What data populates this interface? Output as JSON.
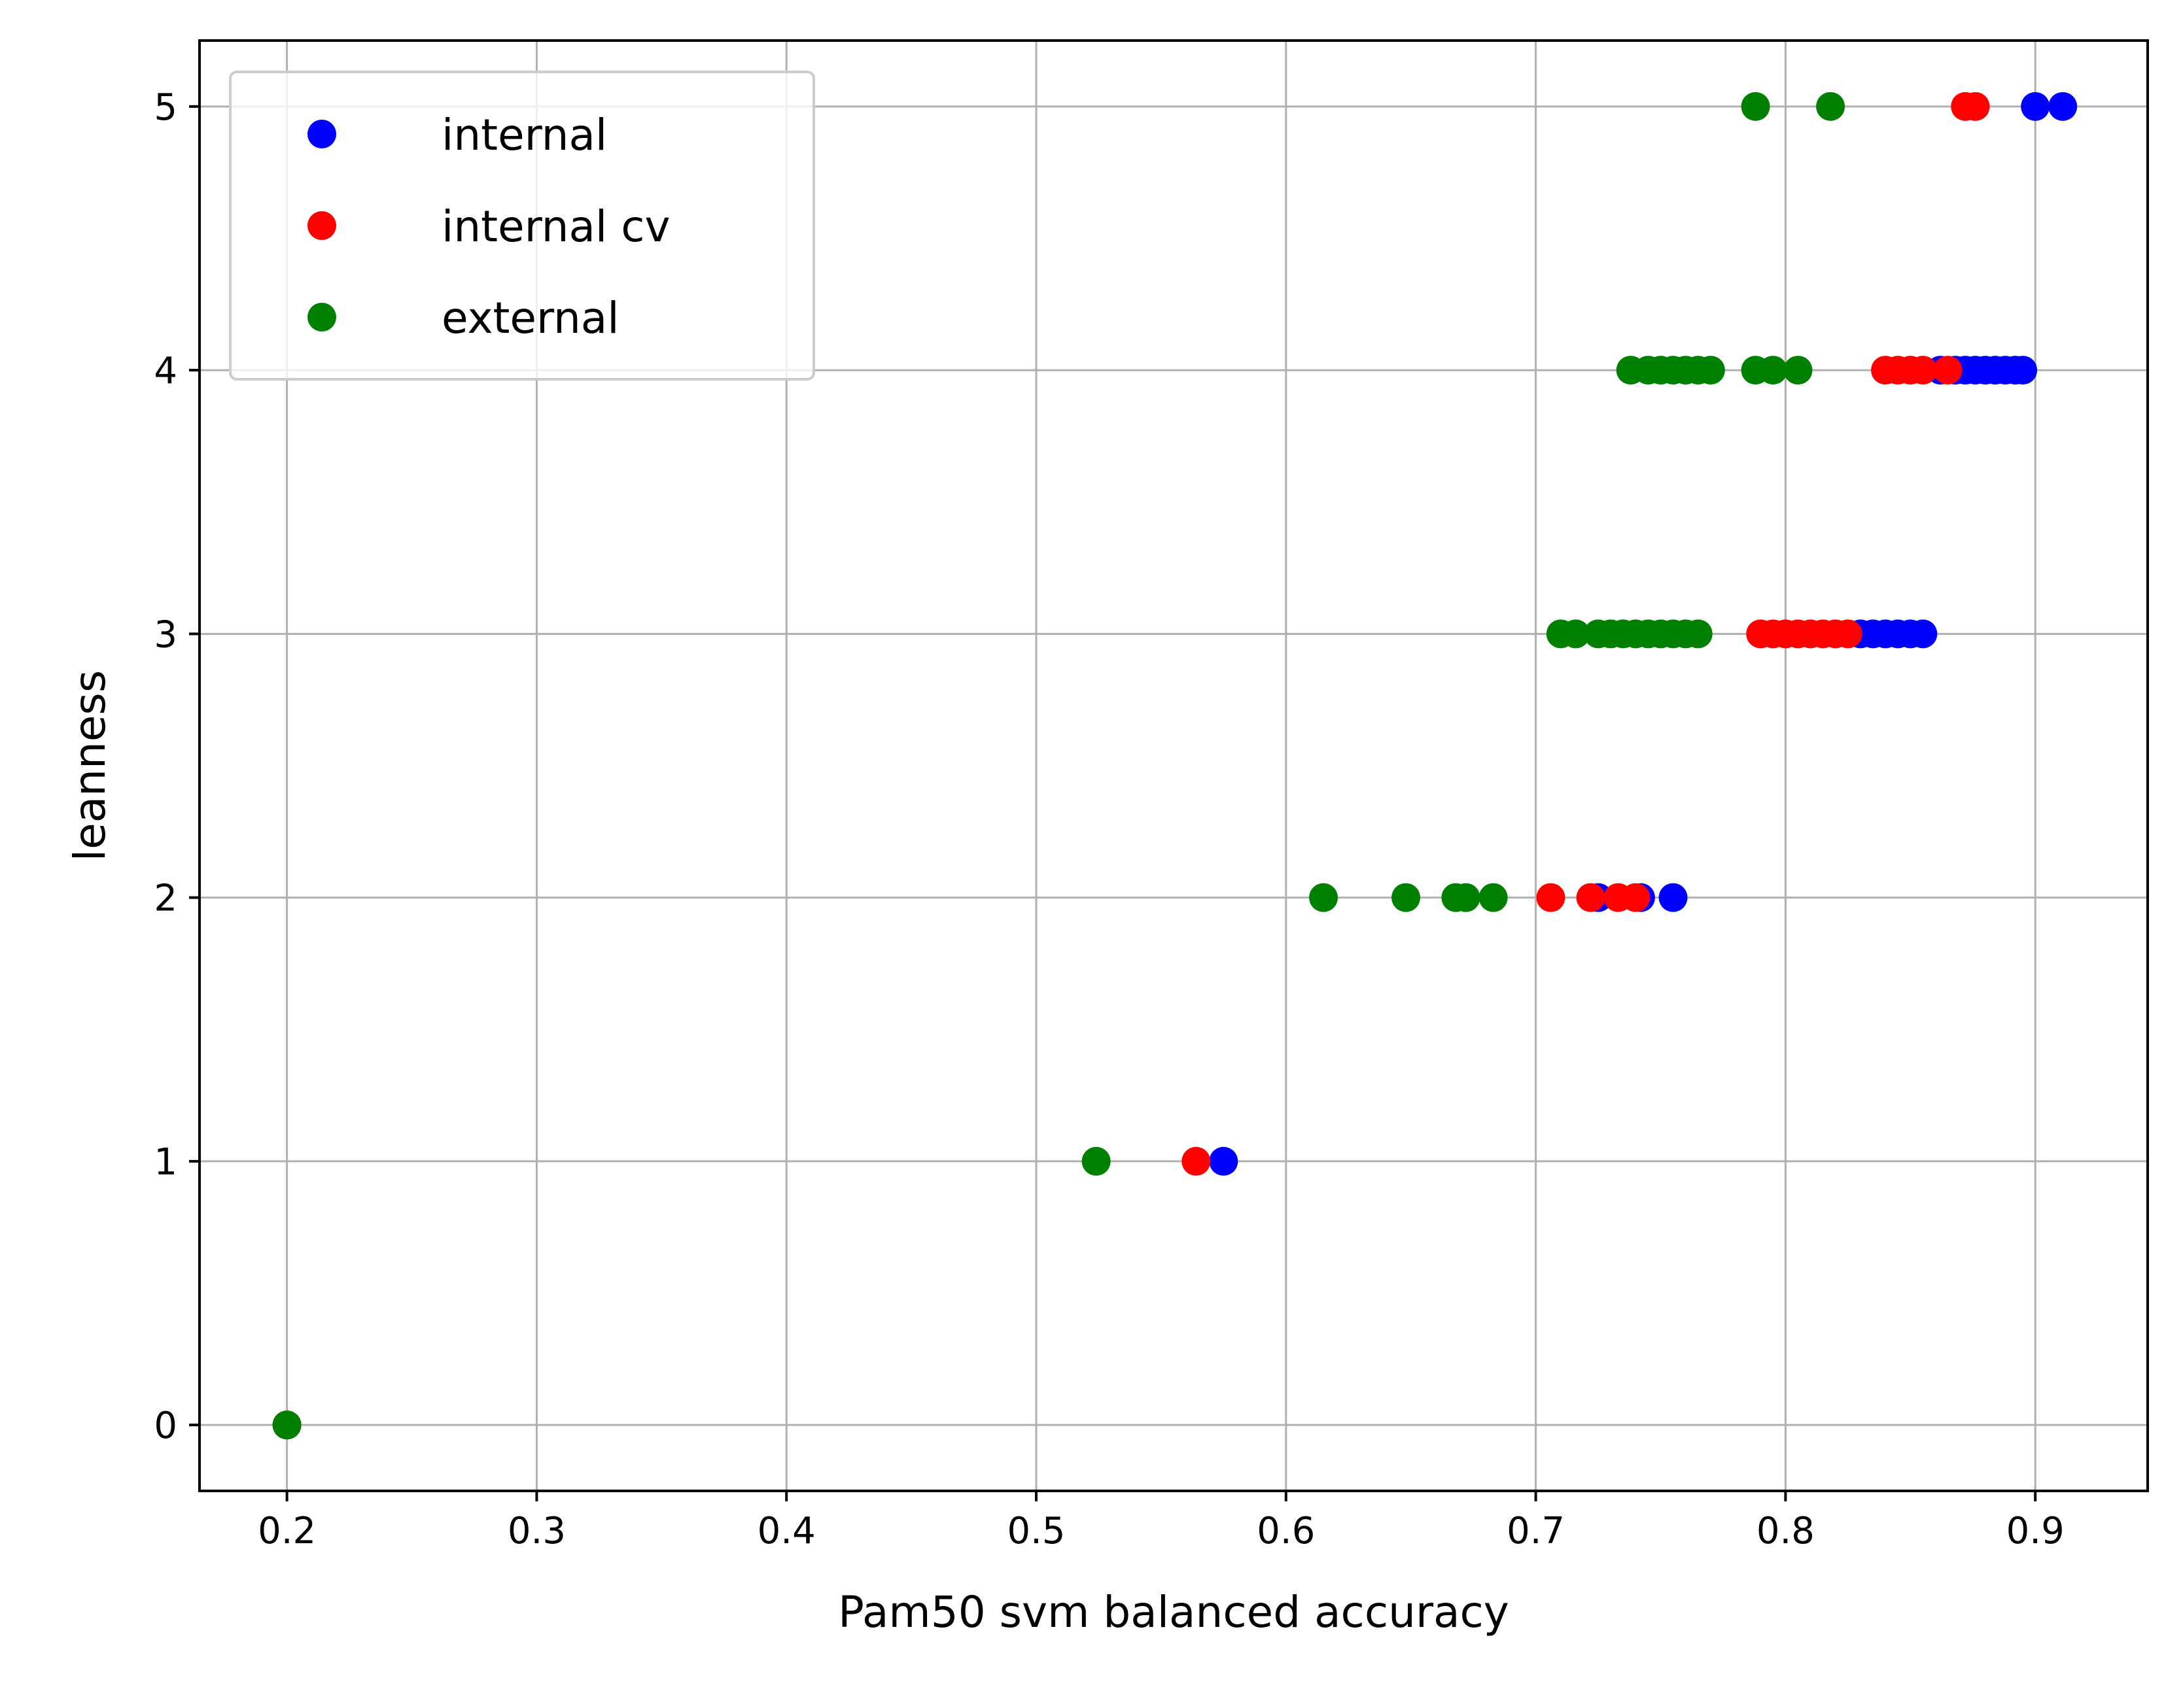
{
  "chart_data": {
    "type": "scatter",
    "title": "",
    "xlabel": "Pam50 svm balanced accuracy",
    "ylabel": "leanness",
    "xlim": [
      0.165,
      0.945
    ],
    "ylim": [
      -0.25,
      5.25
    ],
    "xticks": [
      "0.2",
      "0.3",
      "0.4",
      "0.5",
      "0.6",
      "0.7",
      "0.8",
      "0.9"
    ],
    "yticks": [
      "0",
      "1",
      "2",
      "3",
      "4",
      "5"
    ],
    "grid": true,
    "legend_position": "top-left",
    "series": [
      {
        "name": "internal",
        "color": "#0000ff",
        "points": [
          {
            "x": 0.2,
            "y": 0
          },
          {
            "x": 0.575,
            "y": 1
          },
          {
            "x": 0.725,
            "y": 2
          },
          {
            "x": 0.742,
            "y": 2
          },
          {
            "x": 0.755,
            "y": 2
          },
          {
            "x": 0.83,
            "y": 3
          },
          {
            "x": 0.835,
            "y": 3
          },
          {
            "x": 0.84,
            "y": 3
          },
          {
            "x": 0.845,
            "y": 3
          },
          {
            "x": 0.85,
            "y": 3
          },
          {
            "x": 0.855,
            "y": 3
          },
          {
            "x": 0.862,
            "y": 4
          },
          {
            "x": 0.868,
            "y": 4
          },
          {
            "x": 0.872,
            "y": 4
          },
          {
            "x": 0.876,
            "y": 4
          },
          {
            "x": 0.88,
            "y": 4
          },
          {
            "x": 0.884,
            "y": 4
          },
          {
            "x": 0.888,
            "y": 4
          },
          {
            "x": 0.892,
            "y": 4
          },
          {
            "x": 0.895,
            "y": 4
          },
          {
            "x": 0.9,
            "y": 5
          },
          {
            "x": 0.911,
            "y": 5
          }
        ]
      },
      {
        "name": "internal cv",
        "color": "#ff0000",
        "points": [
          {
            "x": 0.2,
            "y": 0
          },
          {
            "x": 0.564,
            "y": 1
          },
          {
            "x": 0.706,
            "y": 2
          },
          {
            "x": 0.722,
            "y": 2
          },
          {
            "x": 0.733,
            "y": 2
          },
          {
            "x": 0.74,
            "y": 2
          },
          {
            "x": 0.79,
            "y": 3
          },
          {
            "x": 0.795,
            "y": 3
          },
          {
            "x": 0.8,
            "y": 3
          },
          {
            "x": 0.805,
            "y": 3
          },
          {
            "x": 0.81,
            "y": 3
          },
          {
            "x": 0.815,
            "y": 3
          },
          {
            "x": 0.82,
            "y": 3
          },
          {
            "x": 0.825,
            "y": 3
          },
          {
            "x": 0.84,
            "y": 4
          },
          {
            "x": 0.845,
            "y": 4
          },
          {
            "x": 0.85,
            "y": 4
          },
          {
            "x": 0.855,
            "y": 4
          },
          {
            "x": 0.865,
            "y": 4
          },
          {
            "x": 0.872,
            "y": 5
          },
          {
            "x": 0.876,
            "y": 5
          }
        ]
      },
      {
        "name": "external",
        "color": "#008000",
        "points": [
          {
            "x": 0.2,
            "y": 0
          },
          {
            "x": 0.524,
            "y": 1
          },
          {
            "x": 0.615,
            "y": 2
          },
          {
            "x": 0.648,
            "y": 2
          },
          {
            "x": 0.668,
            "y": 2
          },
          {
            "x": 0.672,
            "y": 2
          },
          {
            "x": 0.683,
            "y": 2
          },
          {
            "x": 0.71,
            "y": 3
          },
          {
            "x": 0.716,
            "y": 3
          },
          {
            "x": 0.725,
            "y": 3
          },
          {
            "x": 0.73,
            "y": 3
          },
          {
            "x": 0.735,
            "y": 3
          },
          {
            "x": 0.74,
            "y": 3
          },
          {
            "x": 0.745,
            "y": 3
          },
          {
            "x": 0.75,
            "y": 3
          },
          {
            "x": 0.755,
            "y": 3
          },
          {
            "x": 0.76,
            "y": 3
          },
          {
            "x": 0.765,
            "y": 3
          },
          {
            "x": 0.738,
            "y": 4
          },
          {
            "x": 0.745,
            "y": 4
          },
          {
            "x": 0.75,
            "y": 4
          },
          {
            "x": 0.755,
            "y": 4
          },
          {
            "x": 0.76,
            "y": 4
          },
          {
            "x": 0.765,
            "y": 4
          },
          {
            "x": 0.77,
            "y": 4
          },
          {
            "x": 0.788,
            "y": 4
          },
          {
            "x": 0.795,
            "y": 4
          },
          {
            "x": 0.805,
            "y": 4
          },
          {
            "x": 0.788,
            "y": 5
          },
          {
            "x": 0.818,
            "y": 5
          }
        ]
      }
    ]
  }
}
